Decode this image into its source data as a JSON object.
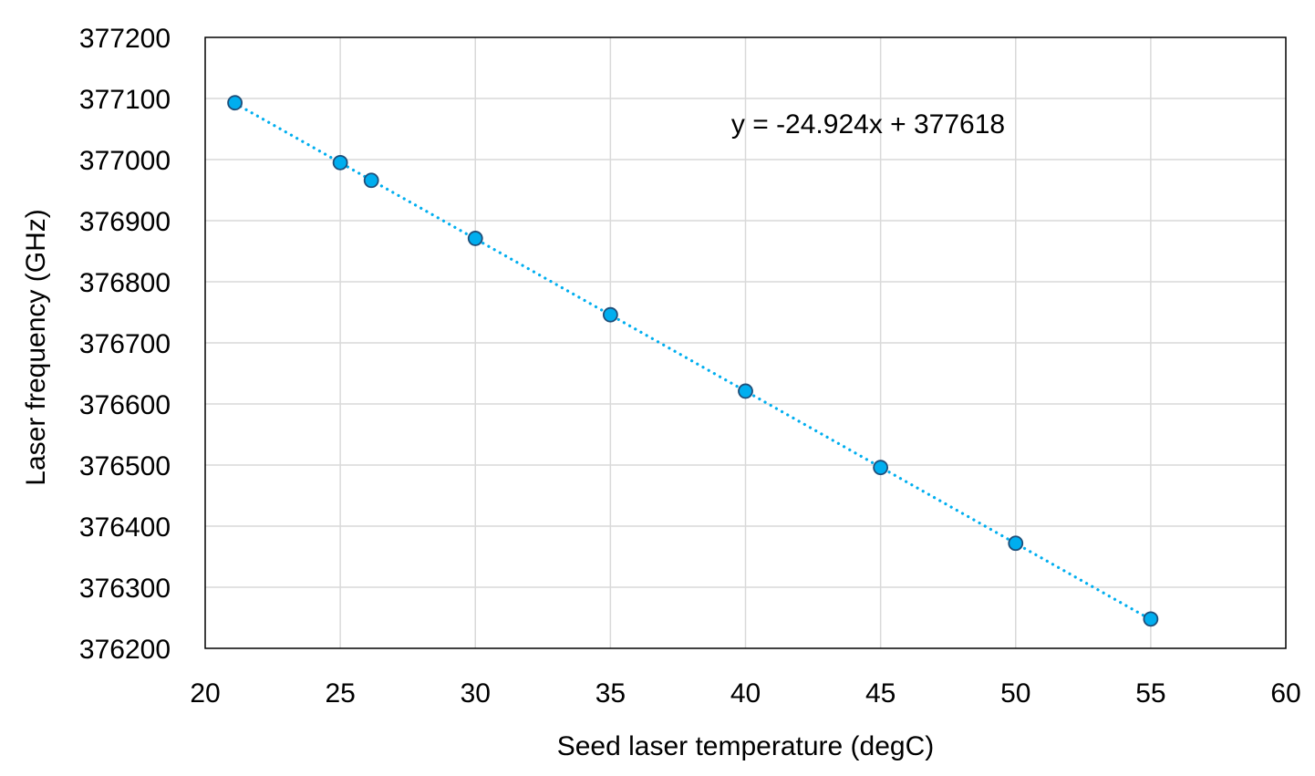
{
  "chart_data": {
    "type": "scatter",
    "title": "",
    "xlabel": "Seed laser temperature (degC)",
    "ylabel": "Laser frequency (GHz)",
    "xlim": [
      20,
      60
    ],
    "ylim": [
      376200,
      377200
    ],
    "x_ticks": [
      "20",
      "25",
      "30",
      "35",
      "40",
      "45",
      "50",
      "55",
      "60"
    ],
    "y_ticks": [
      "377200",
      "377100",
      "377000",
      "376900",
      "376800",
      "376700",
      "376600",
      "376500",
      "376400",
      "376300",
      "376200"
    ],
    "grid": true,
    "legend": "none",
    "series": [
      {
        "points": [
          {
            "x": 21.1,
            "y": 377093
          },
          {
            "x": 25.0,
            "y": 376995
          },
          {
            "x": 26.15,
            "y": 376966
          },
          {
            "x": 30.0,
            "y": 376871
          },
          {
            "x": 35.0,
            "y": 376746
          },
          {
            "x": 40.0,
            "y": 376621
          },
          {
            "x": 45.0,
            "y": 376496
          },
          {
            "x": 50.0,
            "y": 376372
          },
          {
            "x": 55.0,
            "y": 376248
          }
        ],
        "marker_color": "#00AEEF",
        "marker_edge_color": "#1F4E79"
      }
    ],
    "trendline": {
      "slope": -24.924,
      "intercept": 377618,
      "x_range": [
        21.1,
        55.0
      ],
      "style": "dotted",
      "color": "#00AEEF",
      "equation_label": "y = -24.924x + 377618"
    },
    "grid_color": "#D9D9D9",
    "frame_color": "#000000"
  }
}
